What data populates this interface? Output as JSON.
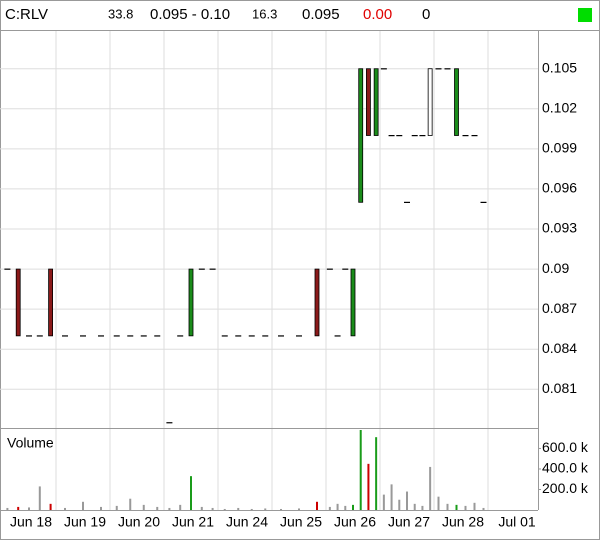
{
  "header": {
    "symbol": "C:RLV",
    "fields": [
      "33.8",
      "0.095 - 0.10",
      "16.3",
      "0.095",
      "0.00",
      "0"
    ]
  },
  "chart_data": {
    "type": "candlestick",
    "volume_title": "Volume",
    "grid": true,
    "categories": [
      "Jun 18",
      "Jun 19",
      "Jun 20",
      "Jun 21",
      "Jun 24",
      "Jun 25",
      "Jun 26",
      "Jun 27",
      "Jun 28",
      "Jul 01"
    ],
    "ylim": [
      0.0781,
      0.1079
    ],
    "yticks": [
      0.081,
      0.084,
      0.087,
      0.09,
      0.093,
      0.096,
      0.099,
      0.102,
      0.105
    ],
    "volume_ylim": [
      0,
      780000
    ],
    "volume_yticks": [
      {
        "value": 200000,
        "label": "200.0 k"
      },
      {
        "value": 400000,
        "label": "400.0 k"
      },
      {
        "value": 600000,
        "label": "600.0 k"
      }
    ],
    "candles": [
      {
        "date": "Jun 18",
        "open": 0.09,
        "high": 0.09,
        "low": 0.09,
        "close": 0.09,
        "volume": 20000,
        "color": "#000000",
        "volume_color": "#999999"
      },
      {
        "date": "Jun 18",
        "open": 0.09,
        "high": 0.09,
        "low": 0.085,
        "close": 0.085,
        "volume": 30000,
        "color": "#8b1a1a",
        "volume_color": "#cc0000"
      },
      {
        "date": "Jun 18",
        "open": 0.085,
        "high": 0.085,
        "low": 0.085,
        "close": 0.085,
        "volume": 25000,
        "color": "#000000",
        "volume_color": "#999999"
      },
      {
        "date": "Jun 18",
        "open": 0.085,
        "high": 0.085,
        "low": 0.085,
        "close": 0.085,
        "volume": 230000,
        "color": "#000000",
        "volume_color": "#999999"
      },
      {
        "date": "Jun 18",
        "open": 0.09,
        "high": 0.09,
        "low": 0.085,
        "close": 0.085,
        "volume": 60000,
        "color": "#8b1a1a",
        "volume_color": "#cc0000"
      },
      {
        "date": "Jun 19",
        "open": 0.085,
        "high": 0.085,
        "low": 0.085,
        "close": 0.085,
        "volume": 20000,
        "color": "#000000",
        "volume_color": "#999999"
      },
      {
        "date": "Jun 19",
        "open": 0.085,
        "high": 0.085,
        "low": 0.085,
        "close": 0.085,
        "volume": 80000,
        "color": "#000000",
        "volume_color": "#999999"
      },
      {
        "date": "Jun 19",
        "open": 0.085,
        "high": 0.085,
        "low": 0.085,
        "close": 0.085,
        "volume": 30000,
        "color": "#000000",
        "volume_color": "#999999"
      },
      {
        "date": "Jun 20",
        "open": 0.085,
        "high": 0.085,
        "low": 0.085,
        "close": 0.085,
        "volume": 40000,
        "color": "#000000",
        "volume_color": "#999999"
      },
      {
        "date": "Jun 20",
        "open": 0.085,
        "high": 0.085,
        "low": 0.085,
        "close": 0.085,
        "volume": 110000,
        "color": "#000000",
        "volume_color": "#999999"
      },
      {
        "date": "Jun 20",
        "open": 0.085,
        "high": 0.085,
        "low": 0.085,
        "close": 0.085,
        "volume": 50000,
        "color": "#000000",
        "volume_color": "#999999"
      },
      {
        "date": "Jun 20",
        "open": 0.085,
        "high": 0.085,
        "low": 0.085,
        "close": 0.085,
        "volume": 30000,
        "color": "#000000",
        "volume_color": "#999999"
      },
      {
        "date": "Jun 21",
        "open": 0.0785,
        "high": 0.0785,
        "low": 0.0785,
        "close": 0.0785,
        "volume": 20000,
        "color": "#000000",
        "volume_color": "#999999"
      },
      {
        "date": "Jun 21",
        "open": 0.085,
        "high": 0.085,
        "low": 0.085,
        "close": 0.085,
        "volume": 50000,
        "color": "#000000",
        "volume_color": "#999999"
      },
      {
        "date": "Jun 21",
        "open": 0.085,
        "high": 0.09,
        "low": 0.085,
        "close": 0.09,
        "volume": 330000,
        "color": "#1a8c1a",
        "volume_color": "#1a9c1a"
      },
      {
        "date": "Jun 21",
        "open": 0.09,
        "high": 0.09,
        "low": 0.09,
        "close": 0.09,
        "volume": 30000,
        "color": "#000000",
        "volume_color": "#999999"
      },
      {
        "date": "Jun 21",
        "open": 0.09,
        "high": 0.09,
        "low": 0.09,
        "close": 0.09,
        "volume": 20000,
        "color": "#000000",
        "volume_color": "#999999"
      },
      {
        "date": "Jun 24",
        "open": 0.085,
        "high": 0.085,
        "low": 0.085,
        "close": 0.085,
        "volume": 10000,
        "color": "#000000",
        "volume_color": "#999999"
      },
      {
        "date": "Jun 24",
        "open": 0.085,
        "high": 0.085,
        "low": 0.085,
        "close": 0.085,
        "volume": 20000,
        "color": "#000000",
        "volume_color": "#999999"
      },
      {
        "date": "Jun 24",
        "open": 0.085,
        "high": 0.085,
        "low": 0.085,
        "close": 0.085,
        "volume": 10000,
        "color": "#000000",
        "volume_color": "#999999"
      },
      {
        "date": "Jun 24",
        "open": 0.085,
        "high": 0.085,
        "low": 0.085,
        "close": 0.085,
        "volume": 15000,
        "color": "#000000",
        "volume_color": "#999999"
      },
      {
        "date": "Jun 25",
        "open": 0.085,
        "high": 0.085,
        "low": 0.085,
        "close": 0.085,
        "volume": 10000,
        "color": "#000000",
        "volume_color": "#999999"
      },
      {
        "date": "Jun 25",
        "open": 0.085,
        "high": 0.085,
        "low": 0.085,
        "close": 0.085,
        "volume": 15000,
        "color": "#000000",
        "volume_color": "#999999"
      },
      {
        "date": "Jun 25",
        "open": 0.09,
        "high": 0.09,
        "low": 0.085,
        "close": 0.085,
        "volume": 80000,
        "color": "#8b1a1a",
        "volume_color": "#cc0000"
      },
      {
        "date": "Jun 26",
        "open": 0.09,
        "high": 0.09,
        "low": 0.09,
        "close": 0.09,
        "volume": 30000,
        "color": "#000000",
        "volume_color": "#999999"
      },
      {
        "date": "Jun 26",
        "open": 0.085,
        "high": 0.085,
        "low": 0.085,
        "close": 0.085,
        "volume": 60000,
        "color": "#000000",
        "volume_color": "#999999"
      },
      {
        "date": "Jun 26",
        "open": 0.09,
        "high": 0.09,
        "low": 0.09,
        "close": 0.09,
        "volume": 40000,
        "color": "#000000",
        "volume_color": "#999999"
      },
      {
        "date": "Jun 26",
        "open": 0.085,
        "high": 0.09,
        "low": 0.085,
        "close": 0.09,
        "volume": 50000,
        "color": "#1a8c1a",
        "volume_color": "#1a9c1a"
      },
      {
        "date": "Jun 26",
        "open": 0.095,
        "high": 0.105,
        "low": 0.095,
        "close": 0.105,
        "volume": 780000,
        "color": "#1a8c1a",
        "volume_color": "#1a9c1a"
      },
      {
        "date": "Jun 26",
        "open": 0.105,
        "high": 0.105,
        "low": 0.1,
        "close": 0.1,
        "volume": 450000,
        "color": "#8b1a1a",
        "volume_color": "#cc0000"
      },
      {
        "date": "Jun 26",
        "open": 0.1,
        "high": 0.105,
        "low": 0.1,
        "close": 0.105,
        "volume": 710000,
        "color": "#1a8c1a",
        "volume_color": "#1a9c1a"
      },
      {
        "date": "Jun 27",
        "open": 0.105,
        "high": 0.105,
        "low": 0.105,
        "close": 0.105,
        "volume": 150000,
        "color": "#000000",
        "volume_color": "#999999"
      },
      {
        "date": "Jun 27",
        "open": 0.1,
        "high": 0.1,
        "low": 0.1,
        "close": 0.1,
        "volume": 250000,
        "color": "#000000",
        "volume_color": "#999999"
      },
      {
        "date": "Jun 27",
        "open": 0.1,
        "high": 0.1,
        "low": 0.1,
        "close": 0.1,
        "volume": 100000,
        "color": "#000000",
        "volume_color": "#999999"
      },
      {
        "date": "Jun 27",
        "open": 0.095,
        "high": 0.095,
        "low": 0.095,
        "close": 0.095,
        "volume": 180000,
        "color": "#000000",
        "volume_color": "#999999"
      },
      {
        "date": "Jun 27",
        "open": 0.1,
        "high": 0.1,
        "low": 0.1,
        "close": 0.1,
        "volume": 60000,
        "color": "#000000",
        "volume_color": "#999999"
      },
      {
        "date": "Jun 27",
        "open": 0.1,
        "high": 0.1,
        "low": 0.1,
        "close": 0.1,
        "volume": 40000,
        "color": "#000000",
        "volume_color": "#999999"
      },
      {
        "date": "Jun 27",
        "open": 0.1,
        "high": 0.105,
        "low": 0.1,
        "close": 0.105,
        "volume": 420000,
        "color": "#ffffff",
        "volume_color": "#999999"
      },
      {
        "date": "Jun 28",
        "open": 0.105,
        "high": 0.105,
        "low": 0.105,
        "close": 0.105,
        "volume": 130000,
        "color": "#000000",
        "volume_color": "#999999"
      },
      {
        "date": "Jun 28",
        "open": 0.105,
        "high": 0.105,
        "low": 0.105,
        "close": 0.105,
        "volume": 60000,
        "color": "#000000",
        "volume_color": "#999999"
      },
      {
        "date": "Jun 28",
        "open": 0.1,
        "high": 0.105,
        "low": 0.1,
        "close": 0.105,
        "volume": 50000,
        "color": "#1a8c1a",
        "volume_color": "#1a9c1a"
      },
      {
        "date": "Jun 28",
        "open": 0.1,
        "high": 0.1,
        "low": 0.1,
        "close": 0.1,
        "volume": 40000,
        "color": "#000000",
        "volume_color": "#999999"
      },
      {
        "date": "Jun 28",
        "open": 0.1,
        "high": 0.1,
        "low": 0.1,
        "close": 0.1,
        "volume": 70000,
        "color": "#000000",
        "volume_color": "#999999"
      },
      {
        "date": "Jun 28",
        "open": 0.095,
        "high": 0.095,
        "low": 0.095,
        "close": 0.095,
        "volume": 20000,
        "color": "#000000",
        "volume_color": "#999999"
      }
    ]
  }
}
